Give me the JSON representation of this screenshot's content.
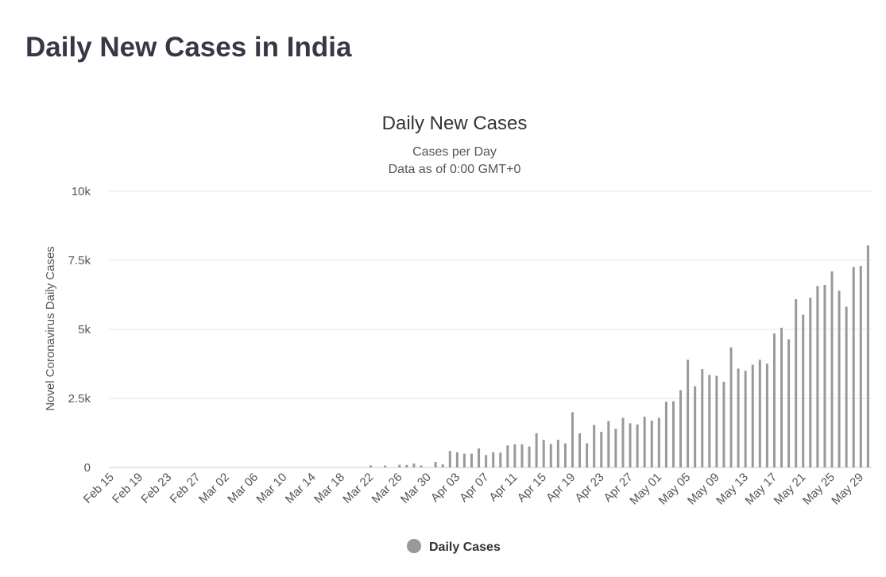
{
  "page": {
    "title": "Daily New Cases in India"
  },
  "chart_data": {
    "type": "bar",
    "title": "Daily New Cases",
    "subtitle": "Cases per Day",
    "subtitle2": "Data as of 0:00 GMT+0",
    "ylabel": "Novel Coronavirus Daily Cases",
    "xlabel": "",
    "ylim": [
      0,
      10000
    ],
    "yticks": [
      0,
      2500,
      5000,
      7500,
      10000
    ],
    "ytick_labels": [
      "0",
      "2.5k",
      "5k",
      "7.5k",
      "10k"
    ],
    "grid": true,
    "legend_position": "bottom-center",
    "colors": {
      "bar": "#999999",
      "grid": "#e6e6e6"
    },
    "xtick_labels": [
      "Feb 15",
      "Feb 19",
      "Feb 23",
      "Feb 27",
      "Mar 02",
      "Mar 06",
      "Mar 10",
      "Mar 14",
      "Mar 18",
      "Mar 22",
      "Mar 26",
      "Mar 30",
      "Apr 03",
      "Apr 07",
      "Apr 11",
      "Apr 15",
      "Apr 19",
      "Apr 23",
      "Apr 27",
      "May 01",
      "May 05",
      "May 09",
      "May 13",
      "May 17",
      "May 21",
      "May 25",
      "May 29"
    ],
    "series": [
      {
        "name": "Daily Cases",
        "start_date": "Feb 15",
        "values": [
          0,
          0,
          0,
          0,
          0,
          0,
          0,
          0,
          0,
          0,
          0,
          0,
          0,
          0,
          0,
          0,
          0,
          0,
          0,
          0,
          0,
          0,
          0,
          0,
          0,
          0,
          0,
          0,
          0,
          0,
          0,
          0,
          0,
          0,
          0,
          0,
          70,
          0,
          70,
          0,
          100,
          90,
          140,
          70,
          0,
          200,
          110,
          600,
          550,
          500,
          500,
          690,
          450,
          550,
          540,
          800,
          840,
          840,
          760,
          1240,
          1000,
          850,
          1000,
          870,
          2000,
          1240,
          880,
          1540,
          1290,
          1680,
          1400,
          1800,
          1600,
          1560,
          1840,
          1700,
          1800,
          2380,
          2400,
          2800,
          3900,
          2940,
          3560,
          3350,
          3320,
          3100,
          4350,
          3580,
          3500,
          3720,
          3900,
          3760,
          4850,
          5060,
          4640,
          6090,
          5530,
          6150,
          6570,
          6610,
          7100,
          6400,
          5820,
          7260,
          7300,
          8040
        ]
      }
    ]
  }
}
